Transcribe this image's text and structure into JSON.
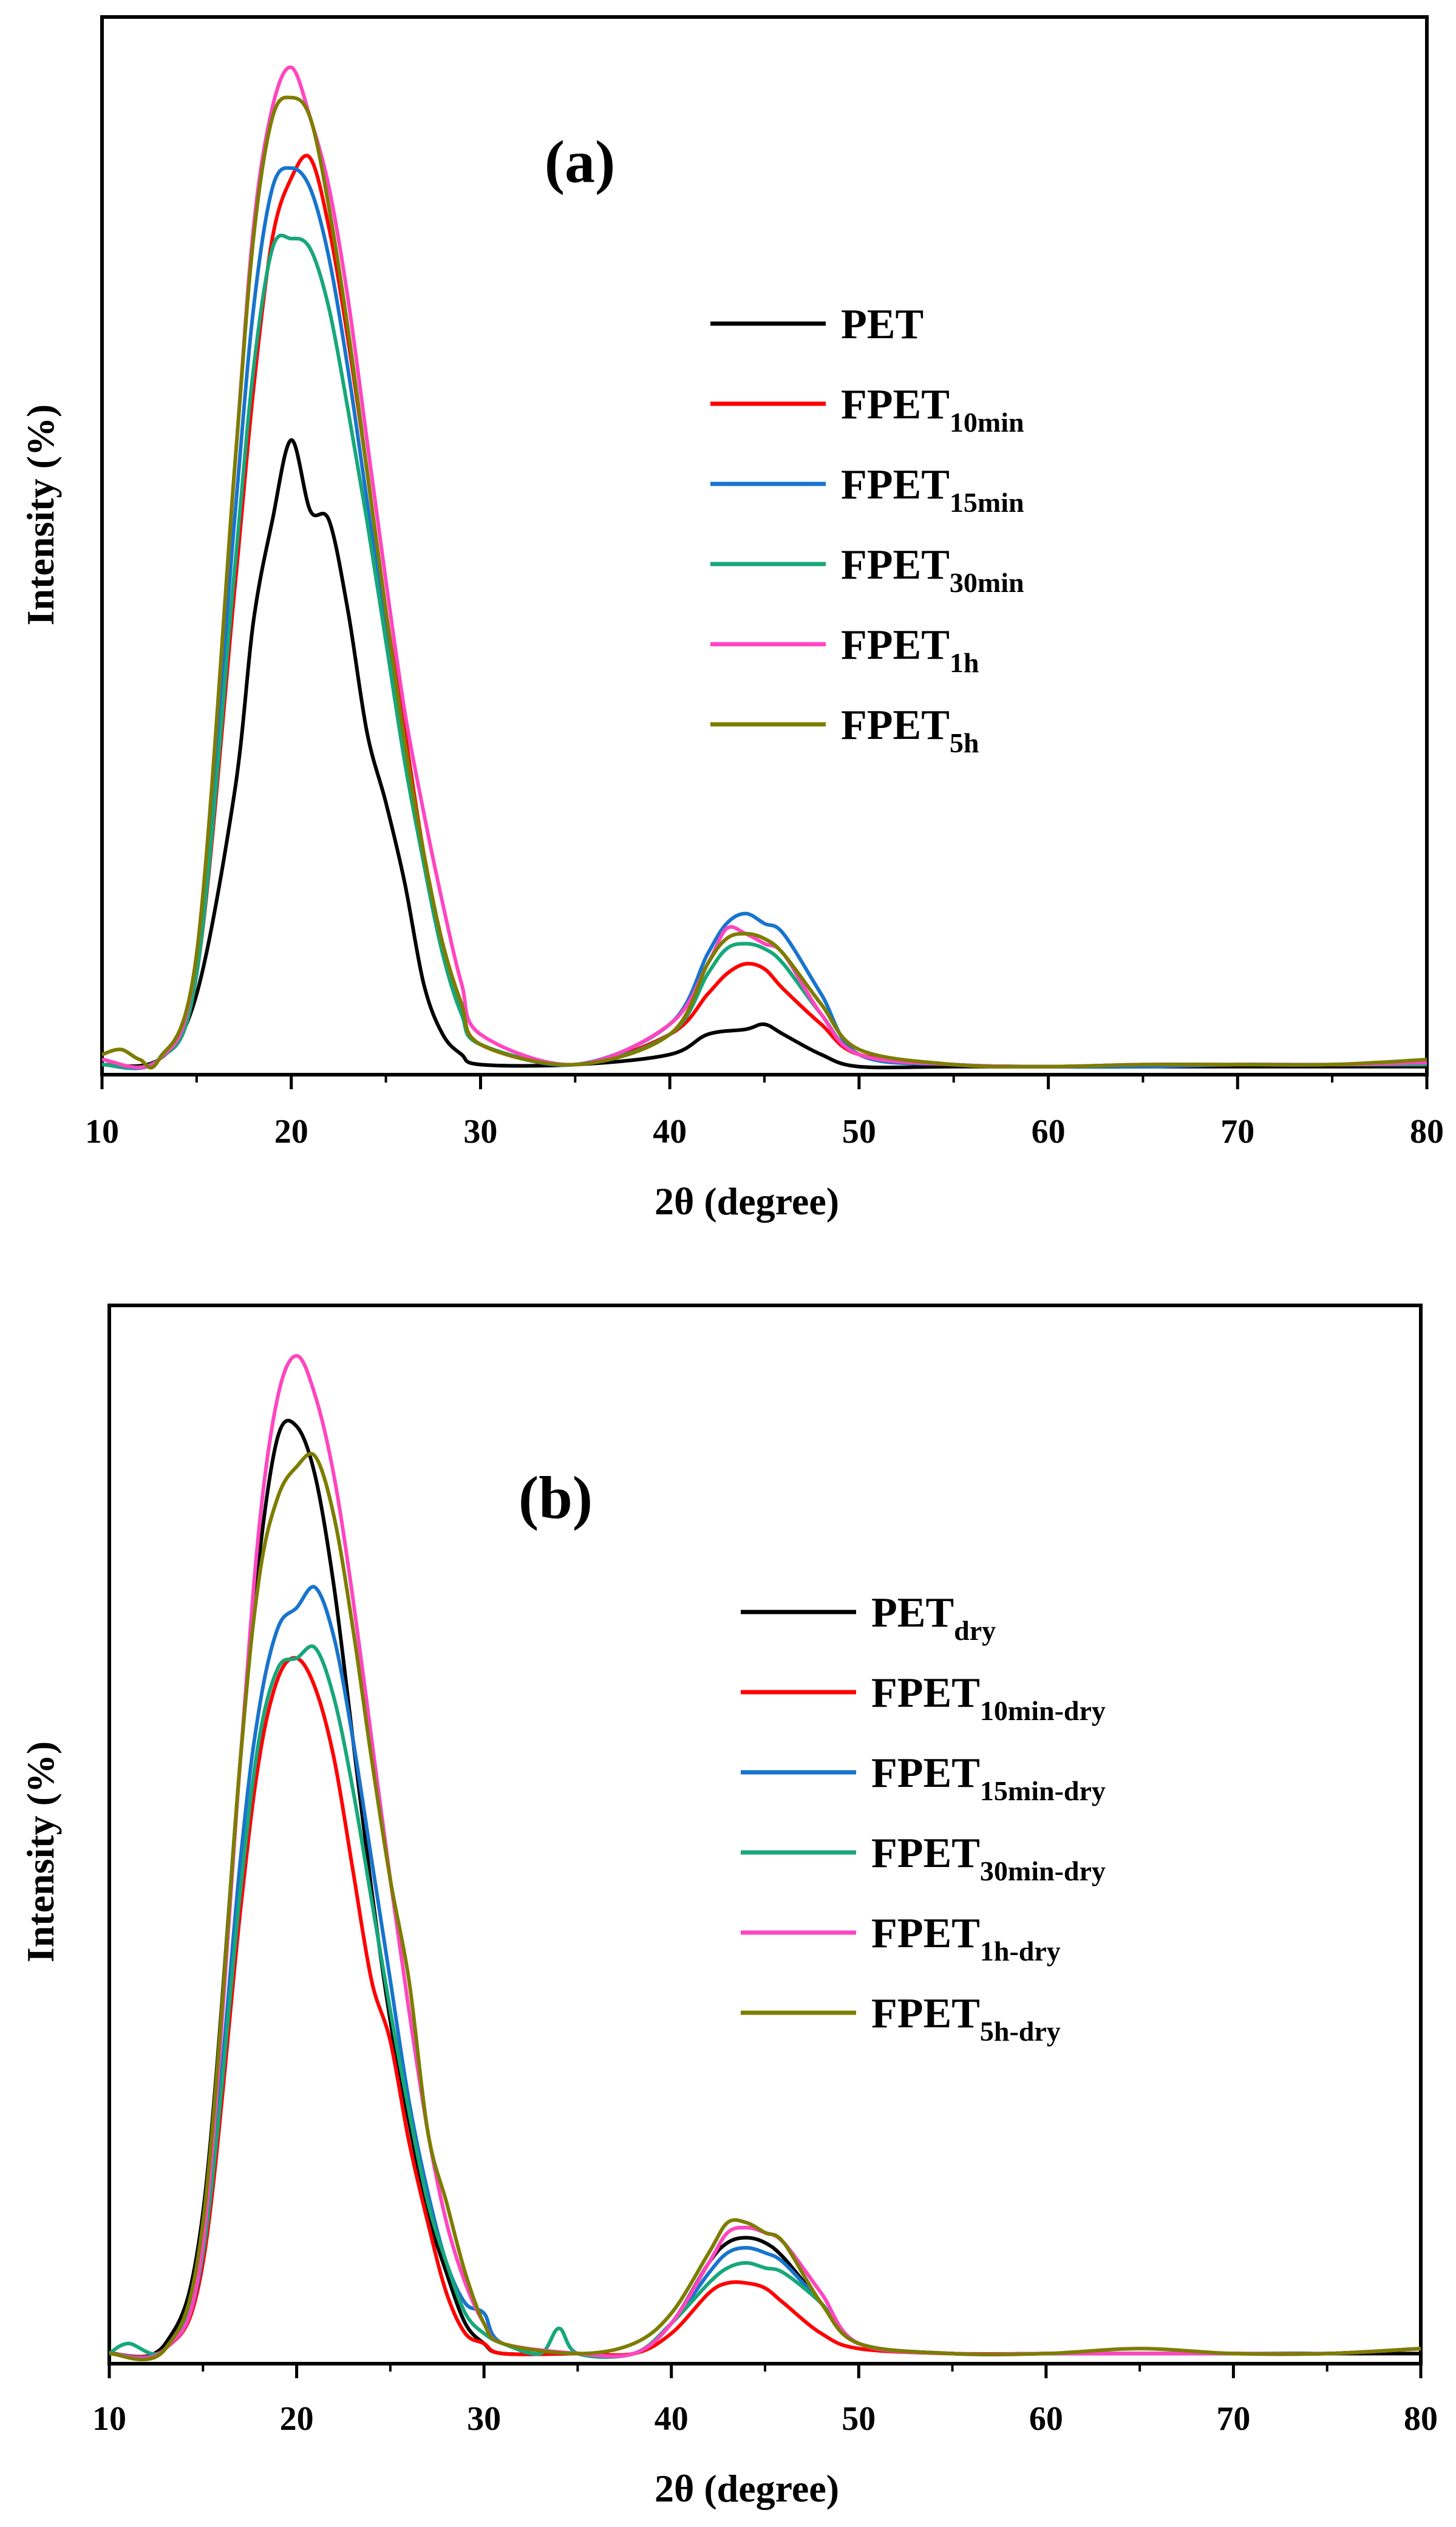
{
  "chart_data": [
    {
      "type": "line",
      "panel_label": "(a)",
      "xlabel": "2θ (degree)",
      "ylabel": "Intensity (%)",
      "xlim": [
        10,
        80
      ],
      "ylim": [
        0,
        105
      ],
      "x_ticks": [
        10,
        20,
        30,
        40,
        50,
        60,
        70,
        80
      ],
      "y_tick_labels_shown": false,
      "legend_position": "right-center",
      "series": [
        {
          "name": "PET",
          "label_main": "PET",
          "label_sub": "",
          "color": "#000000",
          "x": [
            10,
            13,
            15,
            17,
            18,
            19,
            20,
            21,
            22,
            23,
            24,
            25,
            26,
            27,
            28,
            29,
            30,
            35,
            40,
            42,
            44,
            45,
            46,
            48,
            50,
            55,
            60,
            65,
            70,
            75,
            80
          ],
          "y": [
            1,
            1.5,
            8,
            28,
            45,
            55,
            63,
            56,
            55,
            46,
            34,
            27,
            19,
            9,
            4,
            2,
            1,
            1,
            2,
            4,
            4.5,
            5,
            4,
            2,
            0.8,
            0.8,
            0.8,
            0.8,
            0.8,
            0.8,
            0.8
          ]
        },
        {
          "name": "FPET10min",
          "label_main": "FPET",
          "label_sub": "10min",
          "color": "#ff0000",
          "x": [
            10,
            13,
            15,
            17,
            18,
            19,
            20,
            21,
            22,
            23,
            24,
            25,
            26,
            27,
            28,
            29,
            30,
            35,
            40,
            42,
            43,
            44,
            45,
            46,
            48,
            50,
            55,
            60,
            65,
            70,
            75,
            80
          ],
          "y": [
            1,
            1.5,
            10,
            48,
            68,
            83,
            89,
            91,
            84,
            73,
            60,
            46,
            34,
            22,
            13,
            7,
            3,
            1,
            4,
            8,
            10,
            11,
            10.5,
            8.5,
            5,
            2,
            1,
            0.8,
            0.8,
            1,
            1,
            1.2
          ]
        },
        {
          "name": "FPET15min",
          "label_main": "FPET",
          "label_sub": "15min",
          "color": "#1874cd",
          "x": [
            10,
            13,
            15,
            17,
            18,
            19,
            20,
            21,
            22,
            23,
            24,
            25,
            26,
            27,
            28,
            29,
            30,
            35,
            40,
            42,
            43,
            44,
            45,
            46,
            48,
            50,
            55,
            60,
            65,
            70,
            75,
            80
          ],
          "y": [
            1,
            1.5,
            11,
            55,
            76,
            88,
            90,
            88,
            81,
            70,
            57,
            44,
            32,
            21,
            12,
            6,
            3,
            1,
            5,
            12,
            15,
            16,
            15,
            14,
            8,
            2,
            1,
            0.8,
            0.8,
            1,
            1,
            1.2
          ]
        },
        {
          "name": "FPET30min",
          "label_main": "FPET",
          "label_sub": "30min",
          "color": "#17a77a",
          "x": [
            10,
            13,
            15,
            17,
            18,
            19,
            20,
            21,
            22,
            23,
            24,
            25,
            26,
            27,
            28,
            29,
            30,
            35,
            40,
            42,
            43,
            44,
            45,
            46,
            48,
            50,
            55,
            60,
            65,
            70,
            75,
            80
          ],
          "y": [
            1,
            1.5,
            10,
            50,
            70,
            82,
            83,
            82,
            76,
            66,
            55,
            43,
            31,
            21,
            12,
            6,
            3,
            1,
            4,
            10,
            12.5,
            13,
            12.5,
            11,
            6,
            2,
            1,
            0.8,
            1,
            1,
            1,
            1
          ]
        },
        {
          "name": "FPET1h",
          "label_main": "FPET",
          "label_sub": "1h",
          "color": "#ff45c0",
          "x": [
            10,
            13,
            15,
            17,
            18,
            19,
            20,
            21,
            22,
            23,
            24,
            25,
            26,
            27,
            28,
            29,
            30,
            35,
            40,
            42,
            43,
            44,
            45,
            46,
            48,
            50,
            55,
            60,
            65,
            70,
            75,
            80
          ],
          "y": [
            1.5,
            1.5,
            12,
            60,
            84,
            96,
            100,
            95,
            88,
            77,
            63,
            49,
            36,
            26,
            17,
            9,
            4,
            1,
            5,
            11,
            14.5,
            14,
            13,
            12,
            6,
            2,
            1,
            0.8,
            1,
            1,
            1,
            1.2
          ]
        },
        {
          "name": "FPET5h",
          "label_main": "FPET",
          "label_sub": "5h",
          "color": "#7d7d00",
          "x": [
            10,
            11,
            12,
            13,
            15,
            17,
            18,
            19,
            20,
            21,
            22,
            23,
            24,
            25,
            26,
            27,
            28,
            29,
            30,
            35,
            40,
            42,
            43,
            44,
            45,
            46,
            48,
            50,
            55,
            60,
            65,
            70,
            75,
            80
          ],
          "y": [
            2,
            2.5,
            1.5,
            1.5,
            12,
            60,
            83,
            95,
            97,
            95,
            86,
            74,
            60,
            46,
            33,
            22,
            13,
            7,
            3,
            1,
            4,
            11,
            13.5,
            14,
            13.5,
            12,
            7,
            2.5,
            1,
            0.8,
            1,
            1,
            1,
            1.5
          ]
        }
      ]
    },
    {
      "type": "line",
      "panel_label": "(b)",
      "xlabel": "2θ (degree)",
      "ylabel": "Intensity (%)",
      "xlim": [
        10,
        80
      ],
      "ylim": [
        0,
        105
      ],
      "x_ticks": [
        10,
        20,
        30,
        40,
        50,
        60,
        70,
        80
      ],
      "y_tick_labels_shown": false,
      "legend_position": "right-center",
      "series": [
        {
          "name": "PETdry",
          "label_main": "PET",
          "label_sub": "dry",
          "color": "#000000",
          "x": [
            10,
            13,
            15,
            17,
            18,
            19,
            20,
            21,
            22,
            23,
            24,
            25,
            26,
            27,
            28,
            29,
            30,
            31,
            35,
            38,
            40,
            42,
            43,
            44,
            45,
            46,
            48,
            50,
            55,
            60,
            65,
            70,
            75,
            80
          ],
          "y": [
            1,
            2,
            15,
            60,
            80,
            92,
            93,
            88,
            77,
            62,
            47,
            34,
            24,
            15,
            9,
            4,
            2,
            1,
            1,
            1,
            4,
            10,
            12,
            12.5,
            12,
            10.5,
            6,
            2,
            1,
            1,
            1,
            1,
            1,
            1
          ]
        },
        {
          "name": "FPET10min-dry",
          "label_main": "FPET",
          "label_sub": "10min-dry",
          "color": "#ff0000",
          "x": [
            10,
            13,
            15,
            17,
            18,
            19,
            20,
            21,
            22,
            23,
            24,
            25,
            26,
            27,
            28,
            29,
            30,
            31,
            35,
            38,
            40,
            42,
            43,
            44,
            45,
            46,
            48,
            50,
            55,
            60,
            65,
            70,
            75,
            80
          ],
          "y": [
            1,
            1.5,
            10,
            45,
            60,
            68,
            70,
            67,
            60,
            49,
            38,
            32,
            22,
            14,
            7,
            3,
            2,
            1,
            1,
            1,
            3,
            7,
            8,
            8,
            7.5,
            6,
            3,
            1.5,
            1,
            1,
            1,
            1,
            1,
            1.5
          ]
        },
        {
          "name": "FPET15min-dry",
          "label_main": "FPET",
          "label_sub": "15min-dry",
          "color": "#1874cd",
          "x": [
            10,
            13,
            15,
            17,
            18,
            19,
            20,
            21,
            22,
            23,
            24,
            25,
            26,
            27,
            28,
            29,
            30,
            31,
            35,
            38,
            40,
            42,
            43,
            44,
            45,
            46,
            48,
            50,
            55,
            60,
            65,
            70,
            75,
            80
          ],
          "y": [
            1,
            1.5,
            11,
            50,
            65,
            73,
            75,
            77,
            72,
            62,
            50,
            38,
            26,
            17,
            10,
            6,
            5,
            2,
            1,
            1,
            4,
            9,
            11,
            11.5,
            11,
            10,
            6,
            2,
            1,
            1,
            1,
            1,
            1,
            1.5
          ]
        },
        {
          "name": "FPET30min-dry",
          "label_main": "FPET",
          "label_sub": "30min-dry",
          "color": "#17a77a",
          "x": [
            10,
            11,
            13,
            15,
            17,
            18,
            19,
            20,
            21,
            22,
            23,
            24,
            25,
            26,
            27,
            28,
            29,
            30,
            31,
            33,
            34,
            35,
            38,
            40,
            42,
            43,
            44,
            45,
            46,
            48,
            50,
            55,
            60,
            65,
            70,
            75,
            80
          ],
          "y": [
            1,
            2,
            1.5,
            11,
            47,
            62,
            69,
            70,
            71,
            66,
            57,
            46,
            35,
            25,
            16,
            10,
            5,
            3,
            2,
            1,
            3.5,
            1,
            1,
            4,
            8,
            9.5,
            10,
            9.5,
            9,
            6,
            2,
            1,
            1,
            1,
            1,
            1,
            1.5
          ]
        },
        {
          "name": "FPET1h-dry",
          "label_main": "FPET",
          "label_sub": "1h-dry",
          "color": "#ff45c0",
          "x": [
            10,
            13,
            15,
            17,
            18,
            19,
            20,
            21,
            22,
            23,
            24,
            25,
            26,
            27,
            28,
            29,
            30,
            31,
            35,
            38,
            40,
            42,
            43,
            44,
            45,
            46,
            48,
            50,
            55,
            60,
            65,
            70,
            75,
            80
          ],
          "y": [
            1,
            1.5,
            12,
            60,
            83,
            96,
            100,
            96,
            88,
            76,
            62,
            48,
            35,
            23,
            14,
            8,
            4,
            2,
            1,
            1,
            4,
            10,
            13,
            13.5,
            13,
            12,
            7,
            2,
            1,
            1,
            1,
            1,
            1,
            1.5
          ]
        },
        {
          "name": "FPET5h-dry",
          "label_main": "FPET",
          "label_sub": "5h-dry",
          "color": "#7d7d00",
          "x": [
            10,
            13,
            15,
            17,
            18,
            19,
            20,
            21,
            22,
            23,
            24,
            25,
            26,
            27,
            28,
            29,
            30,
            31,
            35,
            38,
            40,
            42,
            43,
            44,
            45,
            46,
            48,
            50,
            55,
            60,
            65,
            70,
            75,
            80
          ],
          "y": [
            1,
            1.5,
            14,
            60,
            78,
            86,
            89,
            90,
            84,
            73,
            60,
            48,
            38,
            23,
            16,
            9,
            4,
            2,
            1,
            2,
            5,
            11,
            14,
            14,
            13,
            12,
            6,
            2,
            1,
            1,
            1.5,
            1,
            1,
            1.5
          ]
        }
      ]
    }
  ]
}
